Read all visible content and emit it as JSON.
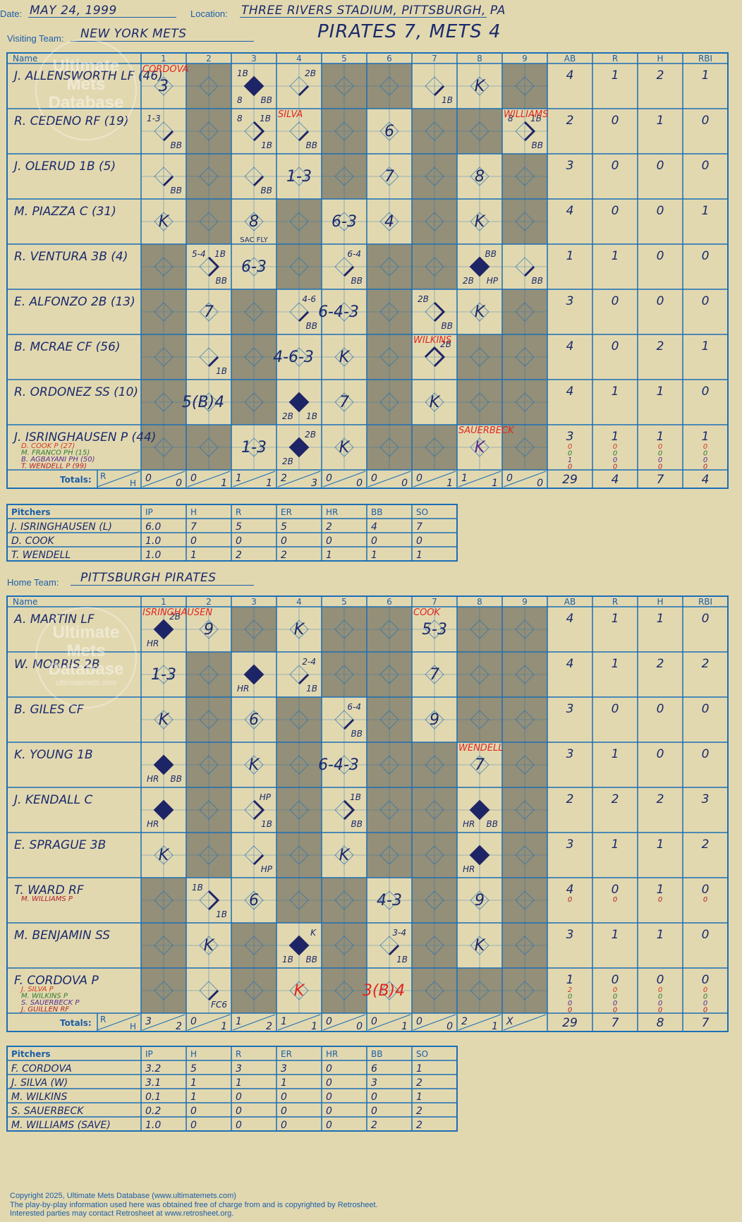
{
  "header": {
    "date_label": "Date:",
    "date": "MAY 24, 1999",
    "location_label": "Location:",
    "location": "THREE RIVERS STADIUM, PITTSBURGH, PA",
    "visiting_label": "Visiting Team:",
    "visiting_team": "NEW YORK METS",
    "home_label": "Home Team:",
    "home_team": "PITTSBURGH PIRATES",
    "title": "PIRATES 7, METS 4"
  },
  "watermark": {
    "line1": "Ultimate",
    "line2": "Mets",
    "line3": "Database",
    "url": "ultimatemets.com"
  },
  "table_headers": {
    "name": "Name",
    "innings": [
      "1",
      "2",
      "3",
      "4",
      "5",
      "6",
      "7",
      "8",
      "9"
    ],
    "stats": [
      "AB",
      "R",
      "H",
      "RBI"
    ],
    "totals_label": "Totals:",
    "r_label": "R",
    "h_label": "H"
  },
  "colors": {
    "shaded": "#948f78",
    "light": "#e2d8b0",
    "grid": "#1b6fb5",
    "ink": "#1a2a6c",
    "red": "#e0261f",
    "base_fill": "#1e2566"
  },
  "visitors": {
    "batters": [
      {
        "name": "J. ALLENSWORTH LF (46)",
        "subs": [],
        "stats": [
          "4",
          "1",
          "2",
          "1"
        ],
        "cells": [
          {
            "i": 1,
            "note": "CORDOVA",
            "text": "3"
          },
          {
            "i": 3,
            "diamond": "full",
            "tl": "1B",
            "bl": "8",
            "br": "BB"
          },
          {
            "i": 4,
            "path": "1",
            "tr": "2B"
          },
          {
            "i": 7,
            "path": "1",
            "br": "1B"
          },
          {
            "i": 8,
            "text": "K"
          }
        ]
      },
      {
        "name": "R. CEDENO RF (19)",
        "subs": [],
        "stats": [
          "2",
          "0",
          "1",
          "0"
        ],
        "cells": [
          {
            "i": 1,
            "path": "1",
            "tl": "1-3",
            "br": "BB"
          },
          {
            "i": 3,
            "path": "2",
            "tl": "8",
            "tr": "1B",
            "br": "1B"
          },
          {
            "i": 4,
            "path": "1",
            "note": "SILVA",
            "br": "BB"
          },
          {
            "i": 6,
            "text": "6"
          },
          {
            "i": 9,
            "path": "2",
            "note": "WILLIAMS",
            "tl": "8",
            "tr": "1B",
            "br": "BB"
          }
        ]
      },
      {
        "name": "J. OLERUD 1B (5)",
        "subs": [],
        "stats": [
          "3",
          "0",
          "0",
          "0"
        ],
        "cells": [
          {
            "i": 1,
            "path": "1",
            "br": "BB"
          },
          {
            "i": 3,
            "path": "1",
            "br": "BB"
          },
          {
            "i": 4,
            "text": "1-3"
          },
          {
            "i": 6,
            "text": "7"
          },
          {
            "i": 8,
            "text": "8"
          }
        ]
      },
      {
        "name": "M. PIAZZA C (31)",
        "subs": [],
        "stats": [
          "4",
          "0",
          "0",
          "1"
        ],
        "cells": [
          {
            "i": 1,
            "text": "K"
          },
          {
            "i": 3,
            "text": "8",
            "bottom": "SAC FLY"
          },
          {
            "i": 5,
            "text": "6-3"
          },
          {
            "i": 6,
            "text": "4"
          },
          {
            "i": 8,
            "text": "K"
          }
        ]
      },
      {
        "name": "R. VENTURA 3B (4)",
        "subs": [],
        "stats": [
          "1",
          "1",
          "0",
          "0"
        ],
        "cells": [
          {
            "i": 2,
            "path": "2",
            "tl": "5-4",
            "tr": "1B",
            "br": "BB"
          },
          {
            "i": 3,
            "text": "6-3"
          },
          {
            "i": 5,
            "path": "1",
            "tr": "6-4",
            "br": "BB"
          },
          {
            "i": 8,
            "diamond": "full",
            "tr": "BB",
            "bl": "2B",
            "br": "HP"
          },
          {
            "i": 9,
            "path": "1",
            "br": "BB"
          }
        ]
      },
      {
        "name": "E. ALFONZO 2B (13)",
        "subs": [],
        "stats": [
          "3",
          "0",
          "0",
          "0"
        ],
        "cells": [
          {
            "i": 2,
            "text": "7"
          },
          {
            "i": 4,
            "path": "1",
            "tr": "4-6",
            "br": "BB"
          },
          {
            "i": 5,
            "text": "6-4-3",
            "left": true
          },
          {
            "i": 7,
            "path": "2",
            "tl": "2B",
            "br": "BB"
          },
          {
            "i": 8,
            "text": "K"
          }
        ]
      },
      {
        "name": "B. MCRAE CF (56)",
        "subs": [],
        "stats": [
          "4",
          "0",
          "2",
          "1"
        ],
        "cells": [
          {
            "i": 2,
            "path": "1",
            "br": "1B"
          },
          {
            "i": 4,
            "text": "4-6-3",
            "left": true
          },
          {
            "i": 5,
            "text": "K"
          },
          {
            "i": 7,
            "path": "3",
            "note": "WILKINS",
            "tr": "2B"
          }
        ]
      },
      {
        "name": "R. ORDONEZ SS (10)",
        "subs": [],
        "stats": [
          "4",
          "1",
          "1",
          "0"
        ],
        "cells": [
          {
            "i": 2,
            "text": "5(B)4",
            "left": true
          },
          {
            "i": 4,
            "diamond": "full",
            "bl": "2B",
            "br": "1B"
          },
          {
            "i": 5,
            "text": "7"
          },
          {
            "i": 7,
            "text": "K"
          }
        ]
      },
      {
        "name": "J. ISRINGHAUSEN P (44)",
        "subs": [
          {
            "n": "D. COOK P (27)",
            "c": "#d23a1e"
          },
          {
            "n": "M. FRANCO PH (15)",
            "c": "#2f7a2b"
          },
          {
            "n": "B. AGBAYANI PH (50)",
            "c": "#5a2a8e"
          },
          {
            "n": "T. WENDELL P (99)",
            "c": "#b3202a"
          }
        ],
        "stats": [
          "3",
          "1",
          "1",
          "1"
        ],
        "substats": [
          [
            "0",
            "0",
            "0",
            "0"
          ],
          [
            "0",
            "0",
            "0",
            "0"
          ],
          [
            "1",
            "0",
            "0",
            "0"
          ],
          [
            "0",
            "0",
            "0",
            "0"
          ]
        ],
        "cells": [
          {
            "i": 3,
            "text": "1-3"
          },
          {
            "i": 4,
            "diamond": "full",
            "tr": "2B",
            "bl": "2B"
          },
          {
            "i": 5,
            "text": "K"
          },
          {
            "i": 8,
            "text": "K",
            "note": "SAUERBECK",
            "purple": true
          }
        ]
      }
    ],
    "totals": [
      [
        "0",
        "0"
      ],
      [
        "0",
        "1"
      ],
      [
        "1",
        "1"
      ],
      [
        "2",
        "3"
      ],
      [
        "0",
        "0"
      ],
      [
        "0",
        "0"
      ],
      [
        "0",
        "1"
      ],
      [
        "1",
        "1"
      ],
      [
        "0",
        "0"
      ]
    ],
    "totals_stats": [
      "29",
      "4",
      "7",
      "4"
    ],
    "pitchers_header": [
      "Pitchers",
      "IP",
      "H",
      "R",
      "ER",
      "HR",
      "BB",
      "SO"
    ],
    "pitchers": [
      [
        "J. ISRINGHAUSEN (L)",
        "6.0",
        "7",
        "5",
        "5",
        "2",
        "4",
        "7"
      ],
      [
        "D. COOK",
        "1.0",
        "0",
        "0",
        "0",
        "0",
        "0",
        "0"
      ],
      [
        "T. WENDELL",
        "1.0",
        "1",
        "2",
        "2",
        "1",
        "1",
        "1"
      ]
    ]
  },
  "home": {
    "batters": [
      {
        "name": "A. MARTIN LF",
        "subs": [],
        "stats": [
          "4",
          "1",
          "1",
          "0"
        ],
        "cells": [
          {
            "i": 1,
            "diamond": "full",
            "note": "ISRINGHAUSEN",
            "tr": "2B",
            "bl": "HR"
          },
          {
            "i": 2,
            "text": "9"
          },
          {
            "i": 4,
            "text": "K"
          },
          {
            "i": 7,
            "text": "5-3",
            "note": "COOK"
          }
        ]
      },
      {
        "name": "W. MORRIS 2B",
        "subs": [],
        "stats": [
          "4",
          "1",
          "2",
          "2"
        ],
        "cells": [
          {
            "i": 1,
            "text": "1-3"
          },
          {
            "i": 3,
            "diamond": "full",
            "bl": "HR"
          },
          {
            "i": 4,
            "path": "1",
            "tr": "2-4",
            "br": "1B"
          },
          {
            "i": 7,
            "text": "7"
          }
        ]
      },
      {
        "name": "B. GILES CF",
        "subs": [],
        "stats": [
          "3",
          "0",
          "0",
          "0"
        ],
        "cells": [
          {
            "i": 1,
            "text": "K"
          },
          {
            "i": 3,
            "text": "6"
          },
          {
            "i": 5,
            "path": "1",
            "tr": "6-4",
            "br": "BB"
          },
          {
            "i": 7,
            "text": "9"
          }
        ]
      },
      {
        "name": "K. YOUNG 1B",
        "subs": [],
        "stats": [
          "3",
          "1",
          "0",
          "0"
        ],
        "cells": [
          {
            "i": 1,
            "diamond": "full",
            "bl": "HR",
            "br": "BB"
          },
          {
            "i": 3,
            "text": "K"
          },
          {
            "i": 5,
            "text": "6-4-3",
            "left": true
          },
          {
            "i": 8,
            "text": "7",
            "note": "WENDELL"
          }
        ]
      },
      {
        "name": "J. KENDALL C",
        "subs": [],
        "stats": [
          "2",
          "2",
          "2",
          "3"
        ],
        "cells": [
          {
            "i": 1,
            "diamond": "full",
            "bl": "HR"
          },
          {
            "i": 3,
            "path": "2",
            "tr": "HP",
            "br": "1B"
          },
          {
            "i": 5,
            "path": "2",
            "tr": "1B",
            "br": "BB"
          },
          {
            "i": 8,
            "diamond": "full",
            "bl": "HR",
            "br": "BB"
          }
        ]
      },
      {
        "name": "E. SPRAGUE 3B",
        "subs": [],
        "stats": [
          "3",
          "1",
          "1",
          "2"
        ],
        "cells": [
          {
            "i": 1,
            "text": "K"
          },
          {
            "i": 3,
            "path": "1",
            "br": "HP"
          },
          {
            "i": 5,
            "text": "K"
          },
          {
            "i": 8,
            "diamond": "full",
            "bl": "HR"
          }
        ]
      },
      {
        "name": "T. WARD RF",
        "subs": [
          {
            "n": "M. WILLIAMS P",
            "c": "#b3202a"
          }
        ],
        "stats": [
          "4",
          "0",
          "1",
          "0"
        ],
        "substats": [
          [
            "0",
            "0",
            "0",
            "0"
          ]
        ],
        "cells": [
          {
            "i": 2,
            "path": "2",
            "tl": "1B",
            "br": "1B"
          },
          {
            "i": 3,
            "text": "6"
          },
          {
            "i": 6,
            "text": "4-3"
          },
          {
            "i": 8,
            "text": "9"
          }
        ]
      },
      {
        "name": "M. BENJAMIN SS",
        "subs": [],
        "stats": [
          "3",
          "1",
          "1",
          "0"
        ],
        "cells": [
          {
            "i": 2,
            "text": "K"
          },
          {
            "i": 4,
            "diamond": "full",
            "tr": "K",
            "bl": "1B",
            "br": "BB"
          },
          {
            "i": 6,
            "path": "1",
            "tr": "3-4",
            "br": "1B"
          },
          {
            "i": 8,
            "text": "K"
          }
        ]
      },
      {
        "name": "F. CORDOVA P",
        "subs": [
          {
            "n": "J. SILVA P",
            "c": "#d23a1e"
          },
          {
            "n": "M. WILKINS P",
            "c": "#2f7a2b"
          },
          {
            "n": "S. SAUERBECK P",
            "c": "#5a2a8e"
          },
          {
            "n": "J. GUILLEN RF",
            "c": "#b3202a"
          }
        ],
        "stats": [
          "1",
          "0",
          "0",
          "0"
        ],
        "substats": [
          [
            "2",
            "0",
            "0",
            "0"
          ],
          [
            "0",
            "0",
            "0",
            "0"
          ],
          [
            "0",
            "0",
            "0",
            "0"
          ],
          [
            "0",
            "0",
            "0",
            "0"
          ]
        ],
        "cells": [
          {
            "i": 2,
            "path": "1",
            "br": "FC6"
          },
          {
            "i": 4,
            "text": "K",
            "red": true
          },
          {
            "i": 6,
            "text": "3(B)4",
            "red": true,
            "left": true
          }
        ]
      }
    ],
    "totals": [
      [
        "3",
        "2"
      ],
      [
        "0",
        "1"
      ],
      [
        "1",
        "2"
      ],
      [
        "1",
        "1"
      ],
      [
        "0",
        "0"
      ],
      [
        "0",
        "1"
      ],
      [
        "0",
        "0"
      ],
      [
        "2",
        "1"
      ],
      [
        "X",
        ""
      ]
    ],
    "totals_stats": [
      "29",
      "7",
      "8",
      "7"
    ],
    "pitchers_header": [
      "Pitchers",
      "IP",
      "H",
      "R",
      "ER",
      "HR",
      "BB",
      "SO"
    ],
    "pitchers": [
      [
        "F. CORDOVA",
        "3.2",
        "5",
        "3",
        "3",
        "0",
        "6",
        "1"
      ],
      [
        "J. SILVA (W)",
        "3.1",
        "1",
        "1",
        "1",
        "0",
        "3",
        "2"
      ],
      [
        "M. WILKINS",
        "0.1",
        "1",
        "0",
        "0",
        "0",
        "0",
        "1"
      ],
      [
        "S. SAUERBECK",
        "0.2",
        "0",
        "0",
        "0",
        "0",
        "0",
        "2"
      ],
      [
        "M. WILLIAMS (SAVE)",
        "1.0",
        "0",
        "0",
        "0",
        "0",
        "2",
        "2"
      ]
    ]
  },
  "footer": {
    "line1": "Copyright 2025, Ultimate Mets Database (www.ultimatemets.com)",
    "line2": "The play-by-play information used here was obtained free of charge from and is copyrighted by Retrosheet.",
    "line3": "Interested parties may contact Retrosheet at www.retrosheet.org."
  }
}
